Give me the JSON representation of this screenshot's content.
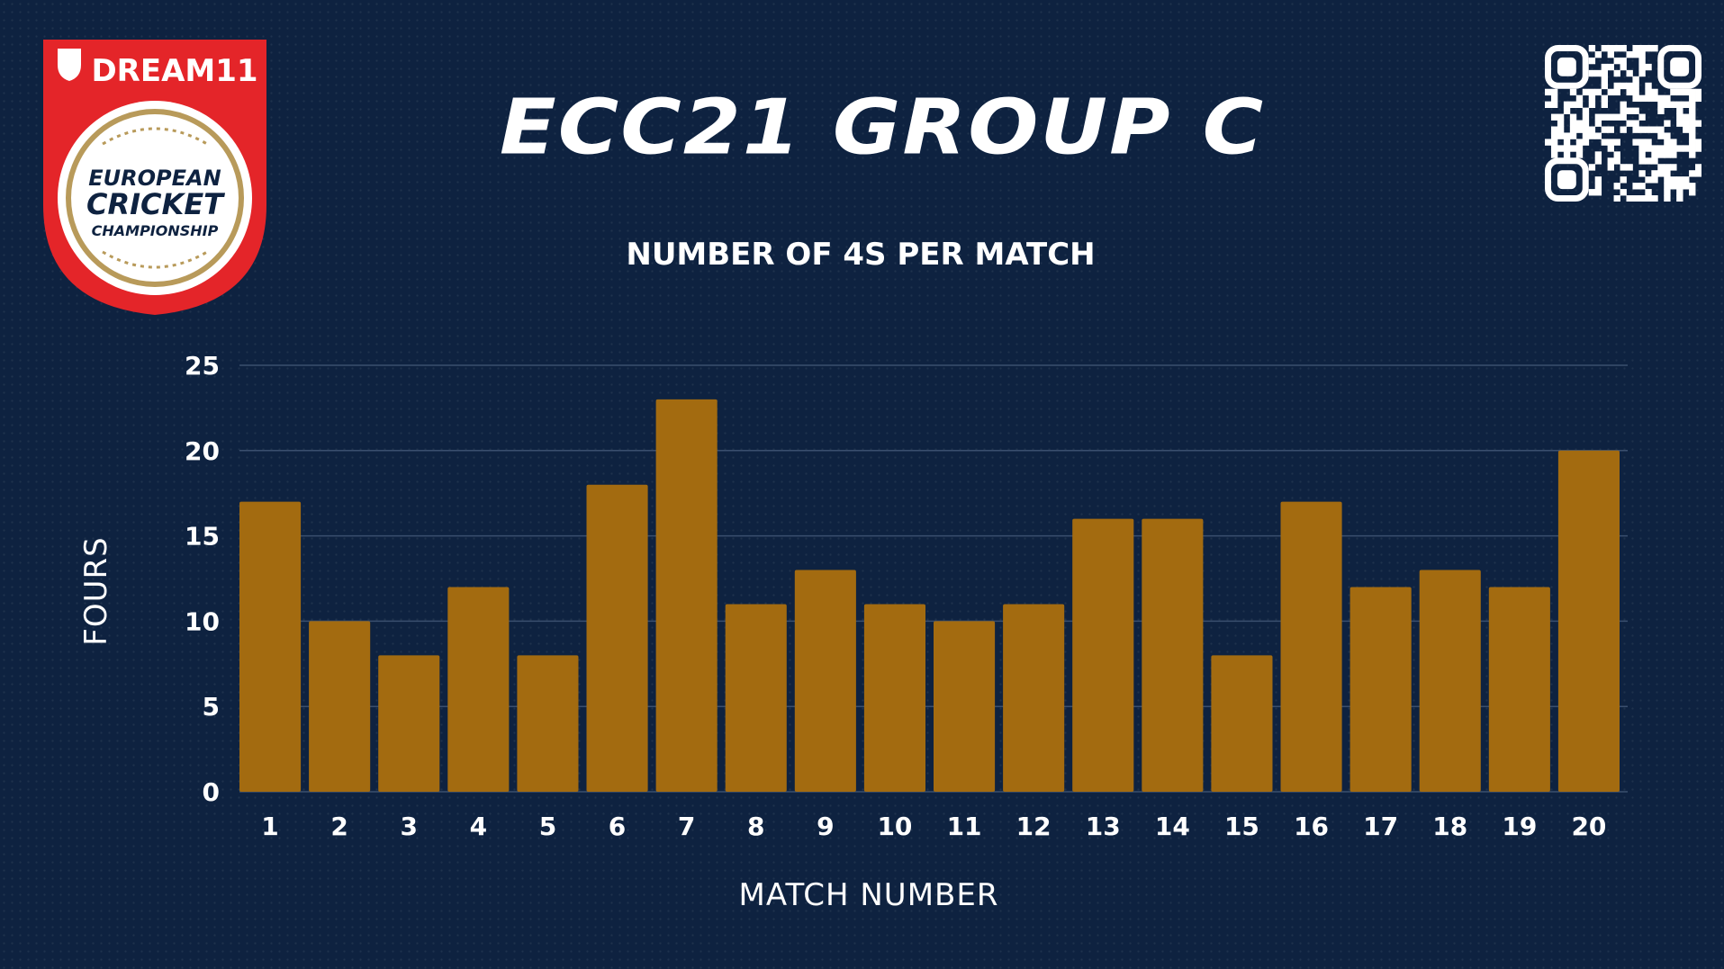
{
  "page": {
    "title": "ECC21 GROUP C",
    "logo_brand": "DREAM11",
    "logo_line1": "EUROPEAN",
    "logo_line2": "CRICKET",
    "logo_line3": "CHAMPIONSHIP"
  },
  "colors": {
    "background": "#0e2240",
    "bar": "#a36b10",
    "grid": "#3a4f6e",
    "logo_red": "#e42529",
    "logo_gold": "#b89a5a"
  },
  "chart_data": {
    "type": "bar",
    "title": "NUMBER OF 4S PER MATCH",
    "xlabel": "MATCH NUMBER",
    "ylabel": "FOURS",
    "categories": [
      "1",
      "2",
      "3",
      "4",
      "5",
      "6",
      "7",
      "8",
      "9",
      "10",
      "11",
      "12",
      "13",
      "14",
      "15",
      "16",
      "17",
      "18",
      "19",
      "20"
    ],
    "values": [
      17,
      10,
      8,
      12,
      8,
      18,
      23,
      11,
      13,
      11,
      10,
      11,
      16,
      16,
      8,
      17,
      12,
      13,
      12,
      20
    ],
    "ylim": [
      0,
      25
    ],
    "yticks": [
      0,
      5,
      10,
      15,
      20,
      25
    ],
    "grid": true
  }
}
